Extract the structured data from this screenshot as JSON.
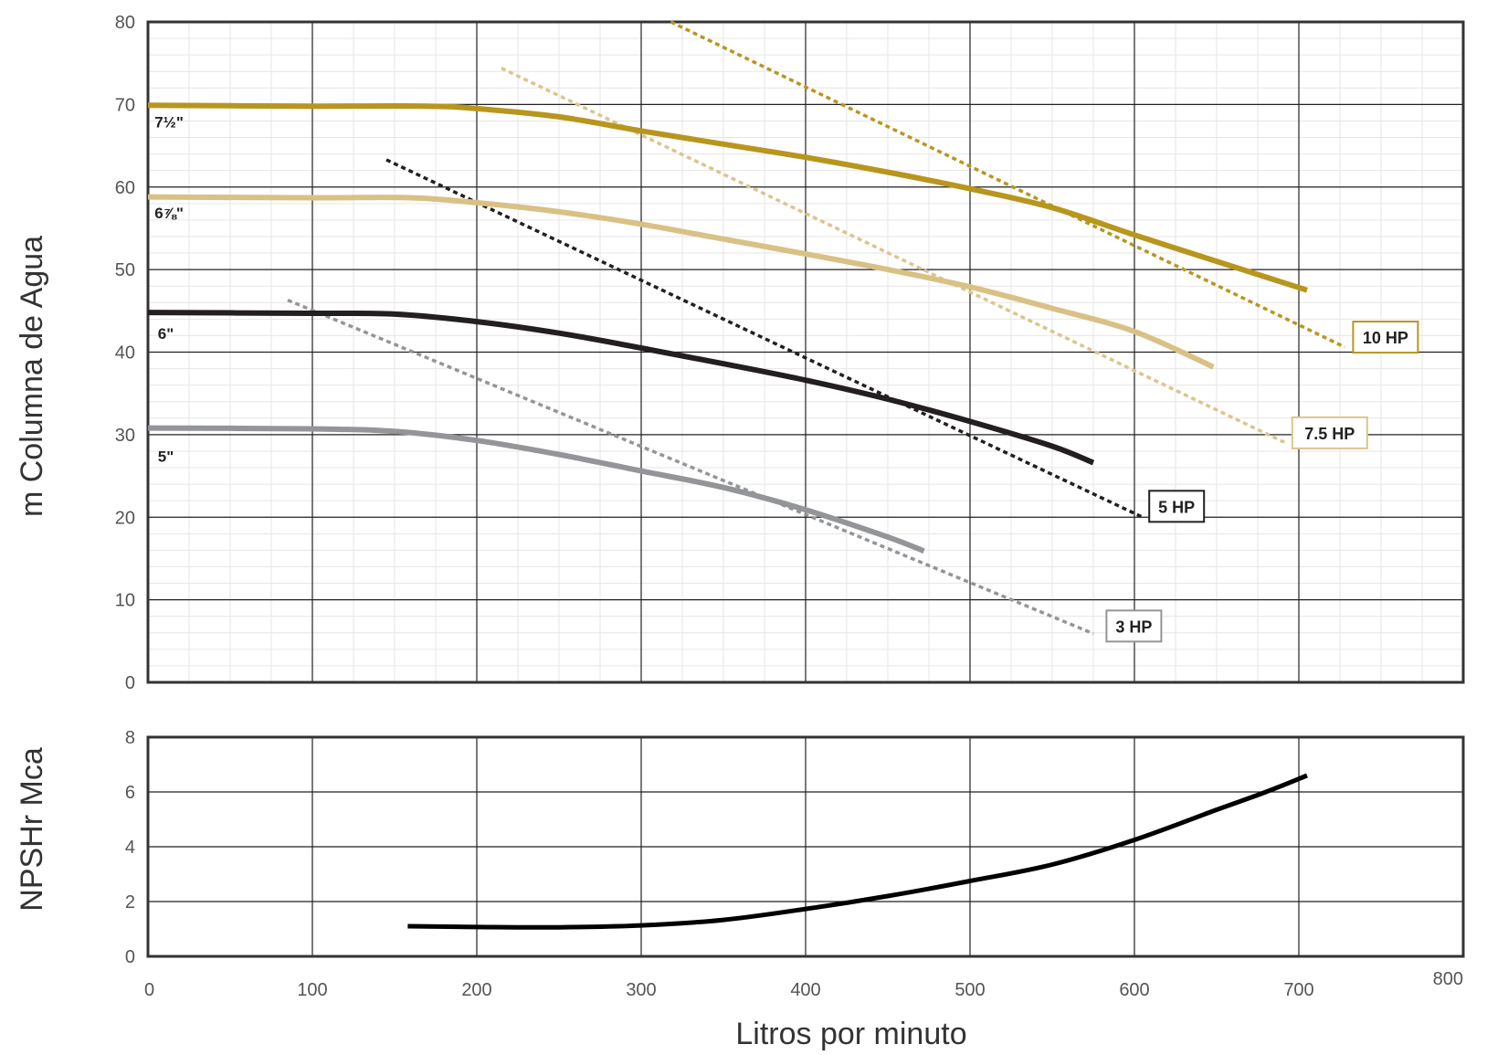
{
  "chart_data": [
    {
      "id": "head",
      "type": "line",
      "title": "",
      "xlabel": "",
      "ylabel": "m Columna de Agua",
      "xlim": [
        0,
        800
      ],
      "ylim": [
        0,
        80
      ],
      "x_ticks": [
        "0",
        "100",
        "200",
        "300",
        "400",
        "500",
        "600",
        "700",
        "800"
      ],
      "y_ticks": [
        "0",
        "10",
        "20",
        "30",
        "40",
        "50",
        "60",
        "70",
        "80"
      ],
      "y_tick_values": [
        0,
        10,
        20,
        30,
        40,
        50,
        60,
        70,
        80
      ],
      "grid": true,
      "impeller_curves": [
        {
          "label": "7½\"",
          "color": "#b8961e",
          "label_at": [
            4,
            67.2
          ],
          "points": [
            [
              0,
              69.9
            ],
            [
              100,
              69.8
            ],
            [
              170,
              69.8
            ],
            [
              200,
              69.5
            ],
            [
              250,
              68.5
            ],
            [
              300,
              66.8
            ],
            [
              350,
              65.2
            ],
            [
              400,
              63.6
            ],
            [
              450,
              61.8
            ],
            [
              500,
              59.8
            ],
            [
              550,
              57.5
            ],
            [
              600,
              54.2
            ],
            [
              650,
              51
            ],
            [
              705,
              47.5
            ]
          ]
        },
        {
          "label": "6⅞\"",
          "color": "#d9c185",
          "label_at": [
            4,
            56.2
          ],
          "points": [
            [
              0,
              58.8
            ],
            [
              100,
              58.7
            ],
            [
              160,
              58.7
            ],
            [
              200,
              58.1
            ],
            [
              250,
              57
            ],
            [
              300,
              55.5
            ],
            [
              350,
              53.7
            ],
            [
              400,
              51.9
            ],
            [
              450,
              50
            ],
            [
              500,
              47.9
            ],
            [
              550,
              45.3
            ],
            [
              600,
              42.5
            ],
            [
              648,
              38.2
            ]
          ]
        },
        {
          "label": "6\"",
          "color": "#231f20",
          "label_at": [
            6,
            41.6
          ],
          "points": [
            [
              0,
              44.8
            ],
            [
              100,
              44.7
            ],
            [
              150,
              44.6
            ],
            [
              200,
              43.7
            ],
            [
              250,
              42.3
            ],
            [
              300,
              40.5
            ],
            [
              350,
              38.6
            ],
            [
              400,
              36.6
            ],
            [
              450,
              34.3
            ],
            [
              500,
              31.6
            ],
            [
              550,
              28.6
            ],
            [
              575,
              26.6
            ]
          ]
        },
        {
          "label": "5\"",
          "color": "#939598",
          "label_at": [
            6,
            26.7
          ],
          "points": [
            [
              0,
              30.8
            ],
            [
              100,
              30.7
            ],
            [
              150,
              30.4
            ],
            [
              200,
              29.3
            ],
            [
              250,
              27.6
            ],
            [
              300,
              25.6
            ],
            [
              350,
              23.6
            ],
            [
              400,
              20.9
            ],
            [
              450,
              17.6
            ],
            [
              472,
              15.9
            ]
          ]
        }
      ],
      "hp_lines": [
        {
          "label": "10 HP",
          "color": "#b8961e",
          "box_border": "#b8961e",
          "points": [
            [
              318,
              80
            ],
            [
              728,
              40.6
            ]
          ],
          "box_at": [
            733,
            43.7
          ]
        },
        {
          "label": "7.5 HP",
          "color": "#dcc48e",
          "box_border": "#dcc48e",
          "points": [
            [
              215,
              74.4
            ],
            [
              692,
              29
            ]
          ],
          "box_at": [
            696,
            32.1
          ]
        },
        {
          "label": "5 HP",
          "color": "#231f20",
          "box_border": "#231f20",
          "points": [
            [
              145,
              63.3
            ],
            [
              605,
              20
            ]
          ],
          "box_at": [
            609,
            23.2
          ]
        },
        {
          "label": "3 HP",
          "color": "#939598",
          "box_border": "#939598",
          "points": [
            [
              85,
              46.3
            ],
            [
              575,
              5.9
            ]
          ],
          "box_at": [
            583,
            8.7
          ]
        }
      ]
    },
    {
      "id": "npshr",
      "type": "line",
      "title": "",
      "xlabel": "Litros por minuto",
      "ylabel": "NPSHr Mca",
      "xlim": [
        0,
        800
      ],
      "ylim": [
        0,
        8
      ],
      "x_ticks": [
        "0",
        "100",
        "200",
        "300",
        "400",
        "500",
        "600",
        "700",
        "800"
      ],
      "y_ticks": [
        "0",
        "2",
        "4",
        "6",
        "8"
      ],
      "y_tick_values": [
        0,
        2,
        4,
        6,
        8
      ],
      "grid": true,
      "series": [
        {
          "name": "",
          "color": "#000000",
          "points": [
            [
              158,
              1.1
            ],
            [
              200,
              1.07
            ],
            [
              250,
              1.06
            ],
            [
              300,
              1.13
            ],
            [
              350,
              1.33
            ],
            [
              400,
              1.73
            ],
            [
              450,
              2.2
            ],
            [
              500,
              2.75
            ],
            [
              550,
              3.35
            ],
            [
              600,
              4.25
            ],
            [
              650,
              5.35
            ],
            [
              680,
              6
            ],
            [
              705,
              6.6
            ]
          ]
        }
      ]
    }
  ]
}
